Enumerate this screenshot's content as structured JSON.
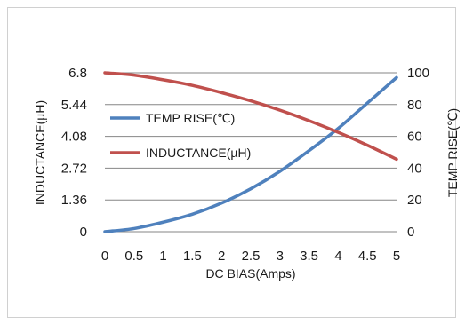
{
  "chart_data": {
    "type": "line",
    "xlabel": "DC  BIAS(Amps)",
    "ylabel_left": "INDUCTANCE(µH)",
    "ylabel_right": "TEMP RISE(℃)",
    "x_ticks": [
      "0",
      "0.5",
      "1",
      "1.5",
      "2",
      "2.5",
      "3",
      "3.5",
      "4",
      "4.5",
      "5"
    ],
    "y_left_ticks": [
      "0",
      "1.36",
      "2.72",
      "4.08",
      "5.44",
      "6.8"
    ],
    "y_right_ticks": [
      "0",
      "20",
      "40",
      "60",
      "80",
      "100"
    ],
    "xlim": [
      0,
      5
    ],
    "ylim_left": [
      0,
      6.8
    ],
    "ylim_right": [
      0,
      100
    ],
    "grid": "horizontal",
    "legend_position": "left-center",
    "series": [
      {
        "name": "TEMP RISE(℃)",
        "axis": "right",
        "color": "#4f81bd",
        "x": [
          0,
          0.5,
          1,
          1.5,
          2,
          2.5,
          3,
          3.5,
          4,
          4.5,
          5
        ],
        "y": [
          0,
          2,
          6,
          11,
          18,
          27,
          38,
          51,
          65,
          81,
          97
        ]
      },
      {
        "name": "INDUCTANCE(µH)",
        "axis": "left",
        "color": "#c0504d",
        "x": [
          0,
          0.5,
          1,
          1.5,
          2,
          2.5,
          3,
          3.5,
          4,
          4.5,
          5
        ],
        "y": [
          6.8,
          6.7,
          6.5,
          6.26,
          5.95,
          5.6,
          5.2,
          4.75,
          4.25,
          3.7,
          3.1
        ]
      }
    ]
  }
}
